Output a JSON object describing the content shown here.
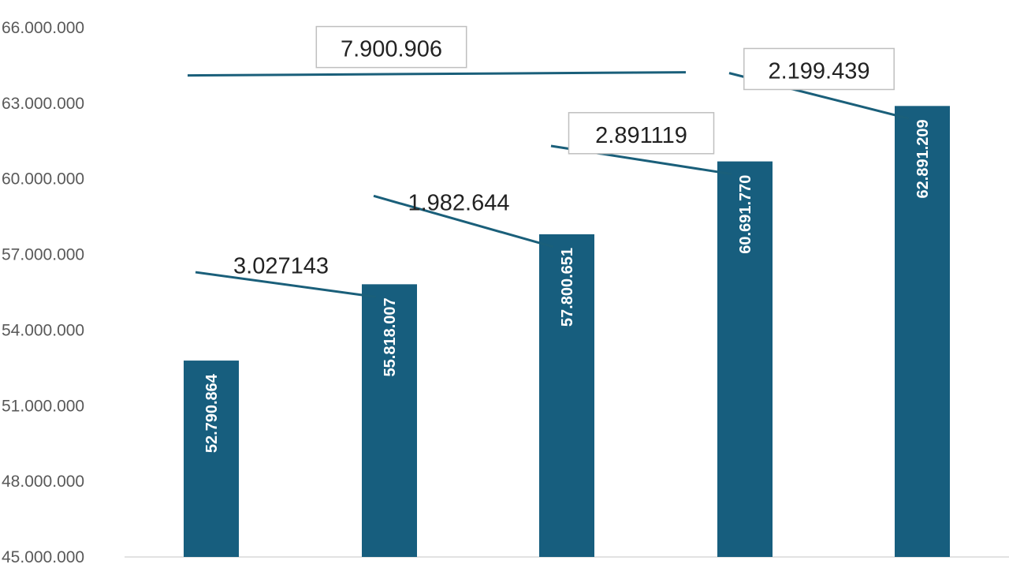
{
  "chart_data": {
    "type": "bar",
    "title": "",
    "xlabel": "",
    "ylabel": "",
    "ylim": [
      45000000,
      66000000
    ],
    "yticks": [
      "45.000.000",
      "48.000.000",
      "51.000.000",
      "54.000.000",
      "57.000.000",
      "60.000.000",
      "63.000.000",
      "66.000.000"
    ],
    "ytick_values": [
      45000000,
      48000000,
      51000000,
      54000000,
      57000000,
      60000000,
      63000000,
      66000000
    ],
    "categories": [
      "",
      "",
      "",
      "",
      ""
    ],
    "values": [
      52790864,
      55818007,
      57800651,
      60691770,
      62891209
    ],
    "data_labels": [
      "52.790.864",
      "55.818.007",
      "57.800.651",
      "60.691.770",
      "62.891.209"
    ],
    "bar_color": "#175e7e",
    "grid": false,
    "annotations": [
      {
        "text": "3.027143",
        "from": 0,
        "to": 1,
        "boxed": false
      },
      {
        "text": "1.982.644",
        "from": 1,
        "to": 2,
        "boxed": false
      },
      {
        "text": "2.891119",
        "from": 2,
        "to": 3,
        "boxed": true
      },
      {
        "text": "2.199.439",
        "from": 3,
        "to": 4,
        "boxed": true
      },
      {
        "text": "7.900.906",
        "from": 0,
        "to": 3,
        "boxed": true
      }
    ]
  }
}
